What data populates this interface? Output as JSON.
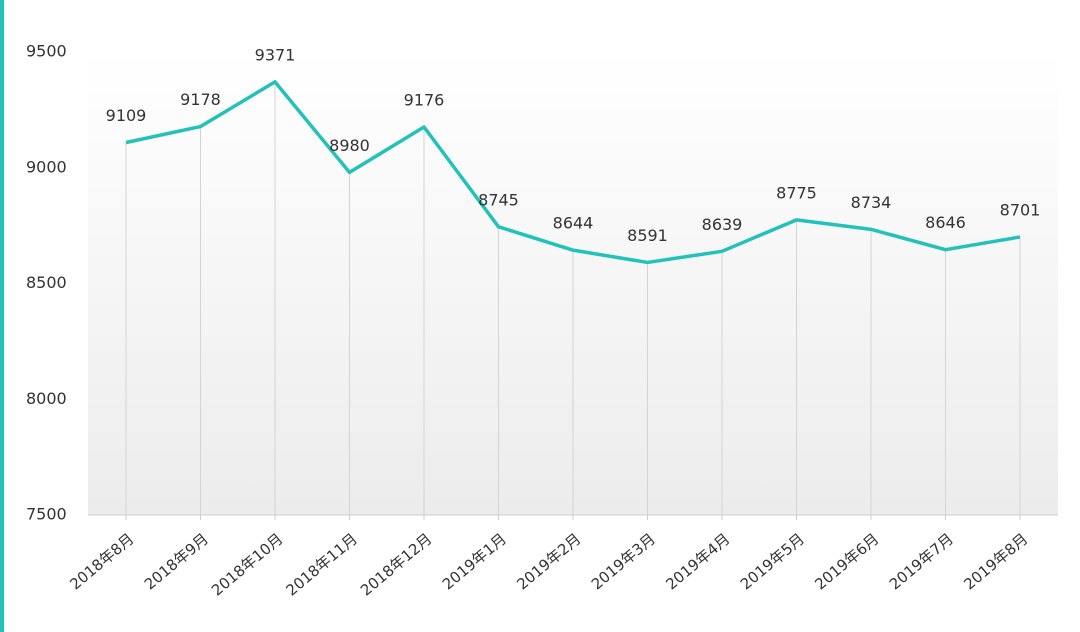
{
  "chart_data": {
    "type": "line",
    "categories": [
      "2018年8月",
      "2018年9月",
      "2018年10月",
      "2018年11月",
      "2018年12月",
      "2019年1月",
      "2019年2月",
      "2019年3月",
      "2019年4月",
      "2019年5月",
      "2019年6月",
      "2019年7月",
      "2019年8月"
    ],
    "values": [
      9109,
      9178,
      9371,
      8980,
      9176,
      8745,
      8644,
      8591,
      8639,
      8775,
      8734,
      8646,
      8701
    ],
    "color": "#22c1b9",
    "ylim": [
      7500,
      9500
    ],
    "yticks": [
      7500,
      8000,
      8500,
      9000,
      9500
    ],
    "grid": false
  }
}
